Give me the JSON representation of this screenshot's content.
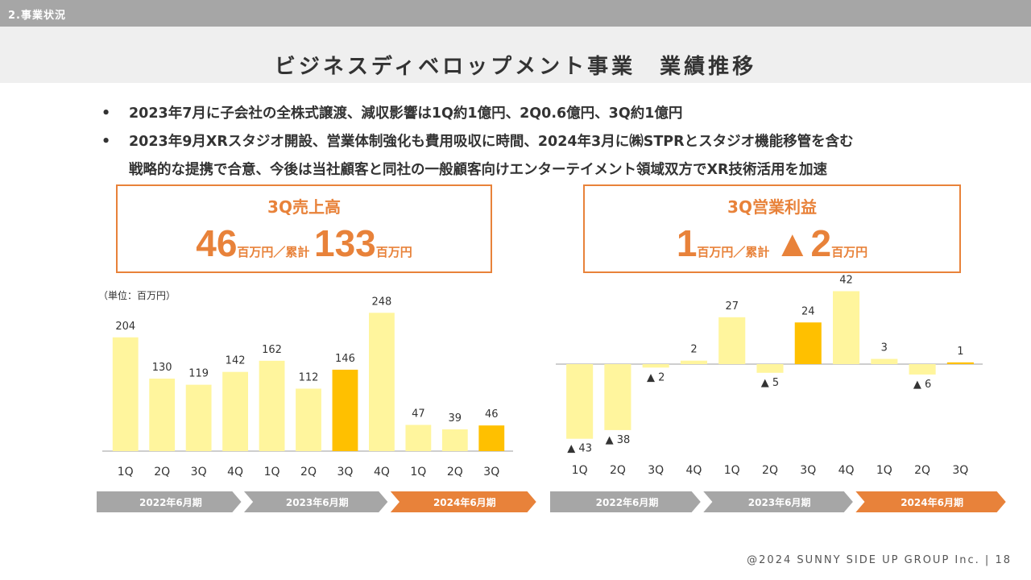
{
  "header": {
    "section_label": "2.事業状況",
    "page_title": "ビジネスディベロップメント事業　業績推移"
  },
  "bullets": [
    "2023年7月に子会社の全株式譲渡、減収影響は1Q約1億円、2Q0.6億円、3Q約1億円",
    "2023年9月XRスタジオ開設、営業体制強化も費用吸収に時間、2024年3月に㈱STPRとスタジオ機能移管を含む",
    "戦略的な提携で合意、今後は当社顧客と同社の一般顧客向けエンターテイメント領域双方でXR技術活用を加速"
  ],
  "bullet_marker": "•",
  "kpi_sales": {
    "title": "3Q売上高",
    "value": "46",
    "unit": "百万円／累計",
    "cum_value": "133",
    "cum_unit": "百万円"
  },
  "kpi_profit": {
    "title": "3Q営業利益",
    "value": "1",
    "unit": "百万円／累計",
    "cum_value": "▲2",
    "cum_unit": "百万円"
  },
  "unit_label": "（単位：百万円）",
  "colors": {
    "bar": "#fff59d",
    "highlight": "#ffc000",
    "arrow_gray": "#a6a6a6",
    "arrow_orange": "#e8823a",
    "accent": "#e8823a"
  },
  "footer": {
    "copyright": "@2024 SUNNY SIDE UP GROUP Inc.",
    "separator": "|",
    "page_number": "18"
  },
  "chart_data": [
    {
      "type": "bar",
      "title": "3Q売上高",
      "unit": "百万円",
      "categories": [
        "1Q",
        "2Q",
        "3Q",
        "4Q",
        "1Q",
        "2Q",
        "3Q",
        "4Q",
        "1Q",
        "2Q",
        "3Q"
      ],
      "values": [
        204,
        130,
        119,
        142,
        162,
        112,
        146,
        248,
        47,
        39,
        46
      ],
      "value_labels": [
        "204",
        "130",
        "119",
        "142",
        "162",
        "112",
        "146",
        "248",
        "47",
        "39",
        "46"
      ],
      "highlight": [
        false,
        false,
        false,
        false,
        false,
        false,
        true,
        false,
        false,
        false,
        true
      ],
      "ylim": [
        0,
        260
      ],
      "periods": [
        {
          "label": "2022年6月期",
          "current": false
        },
        {
          "label": "2023年6月期",
          "current": false
        },
        {
          "label": "2024年6月期",
          "current": true
        }
      ]
    },
    {
      "type": "bar",
      "title": "3Q営業利益",
      "unit": "百万円",
      "categories": [
        "1Q",
        "2Q",
        "3Q",
        "4Q",
        "1Q",
        "2Q",
        "3Q",
        "4Q",
        "1Q",
        "2Q",
        "3Q"
      ],
      "values": [
        -43,
        -38,
        -2,
        2,
        27,
        -5,
        24,
        42,
        3,
        -6,
        1
      ],
      "value_labels": [
        "▲ 43",
        "▲ 38",
        "▲ 2",
        "2",
        "27",
        "▲ 5",
        "24",
        "42",
        "3",
        "▲ 6",
        "1"
      ],
      "highlight": [
        false,
        false,
        false,
        false,
        false,
        false,
        true,
        false,
        false,
        false,
        true
      ],
      "ylim": [
        -50,
        45
      ],
      "periods": [
        {
          "label": "2022年6月期",
          "current": false
        },
        {
          "label": "2023年6月期",
          "current": false
        },
        {
          "label": "2024年6月期",
          "current": true
        }
      ]
    }
  ]
}
